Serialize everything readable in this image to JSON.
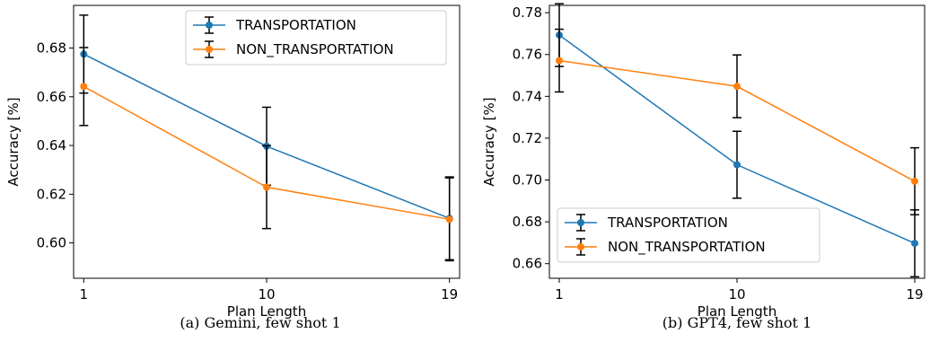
{
  "chart_data": [
    {
      "type": "line",
      "caption": "(a) Gemini, few shot 1",
      "xlabel": "Plan Length",
      "ylabel": "Accuracy [%]",
      "x": [
        1,
        10,
        19
      ],
      "xticks": [
        "1",
        "10",
        "19"
      ],
      "xlim": [
        0.5,
        19.5
      ],
      "ylim": [
        0.5855,
        0.6975
      ],
      "yticks": [
        "0.60",
        "0.62",
        "0.64",
        "0.66",
        "0.68"
      ],
      "grid": false,
      "legend_position": "top-right",
      "series": [
        {
          "name": "TRANSPORTATION",
          "color": "#1f77b4",
          "values": [
            0.6775,
            0.6397,
            0.6101
          ],
          "errors": [
            0.016,
            0.016,
            0.017
          ]
        },
        {
          "name": "NON_TRANSPORTATION",
          "color": "#ff7f0e",
          "values": [
            0.6642,
            0.6229,
            0.6097
          ],
          "errors": [
            0.016,
            0.017,
            0.017
          ]
        }
      ]
    },
    {
      "type": "line",
      "caption": "(b) GPT4, few shot 1",
      "xlabel": "Plan Length",
      "ylabel": "Accuracy [%]",
      "x": [
        1,
        10,
        19
      ],
      "xticks": [
        "1",
        "10",
        "19"
      ],
      "xlim": [
        0.5,
        19.5
      ],
      "ylim": [
        0.653,
        0.7835
      ],
      "yticks": [
        "0.66",
        "0.68",
        "0.70",
        "0.72",
        "0.74",
        "0.76",
        "0.78"
      ],
      "grid": false,
      "legend_position": "bottom-left",
      "series": [
        {
          "name": "TRANSPORTATION",
          "color": "#1f77b4",
          "values": [
            0.7693,
            0.7073,
            0.6697
          ],
          "errors": [
            0.015,
            0.016,
            0.016
          ]
        },
        {
          "name": "NON_TRANSPORTATION",
          "color": "#ff7f0e",
          "values": [
            0.7571,
            0.7448,
            0.6994
          ],
          "errors": [
            0.015,
            0.015,
            0.016
          ]
        }
      ]
    }
  ]
}
